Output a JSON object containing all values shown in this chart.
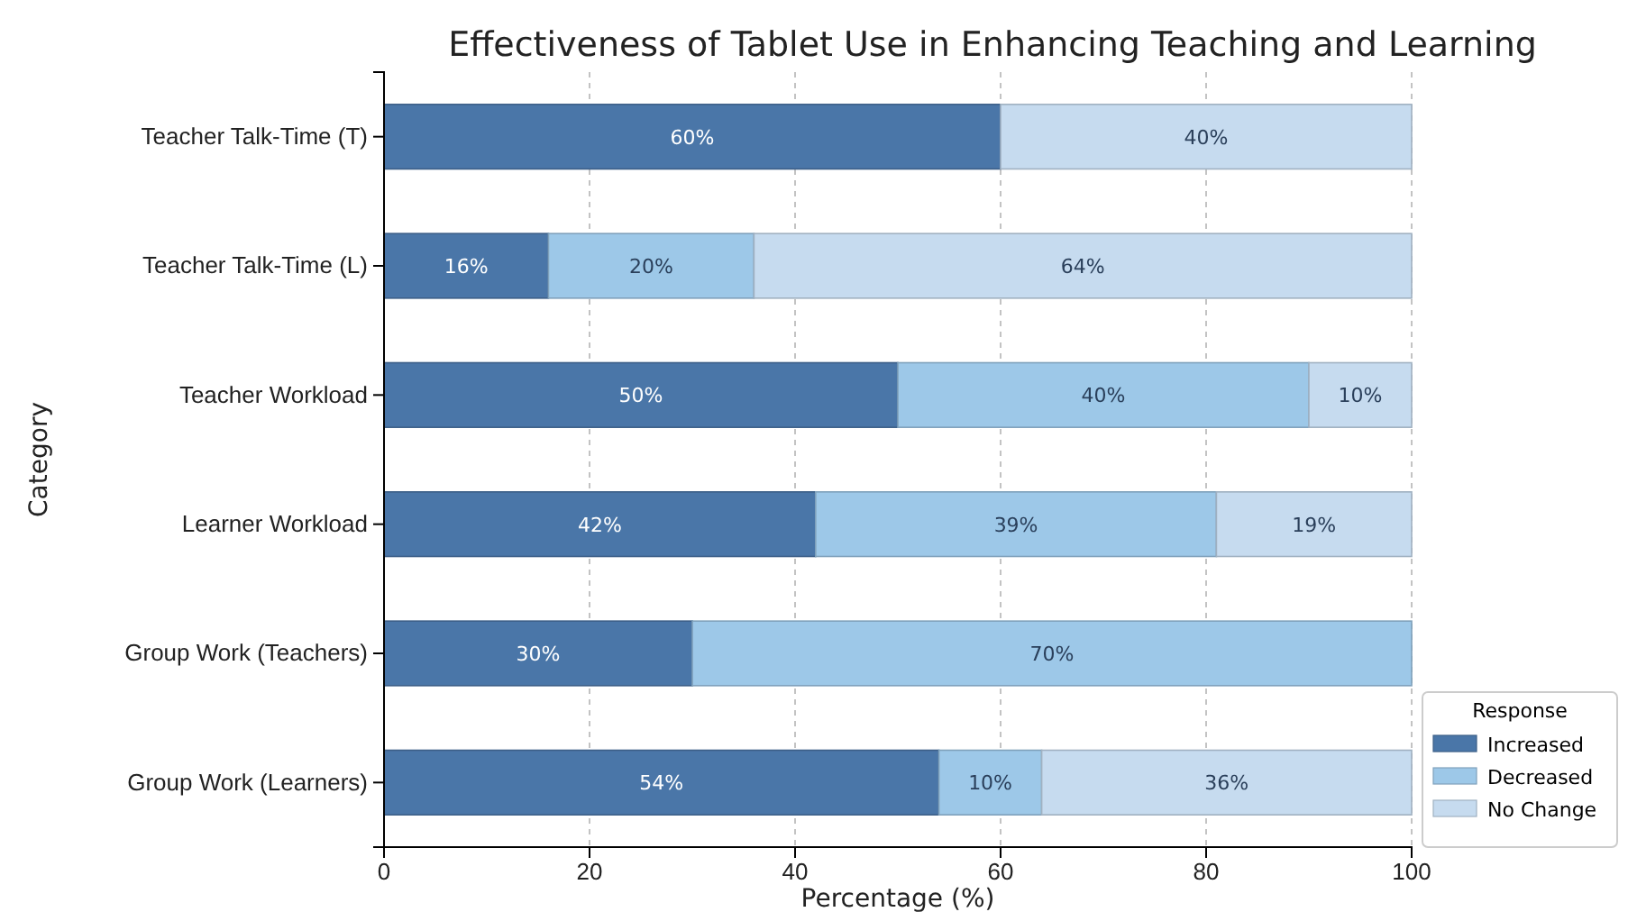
{
  "chart_data": {
    "type": "bar",
    "title": "Effectiveness of Tablet Use in Enhancing Teaching and Learning",
    "xlabel": "Percentage (%)",
    "ylabel": "Category",
    "legend_title": "Response",
    "orientation": "horizontal",
    "stacked": true,
    "grid": true,
    "legend": "bottom right",
    "categories": [
      "Teacher Talk-Time (T)",
      "Teacher Talk-Time (L)",
      "Teacher Workload",
      "Learner Workload",
      "Group Work (Teachers)",
      "Group Work (Learners)"
    ],
    "xlim": [
      0,
      100
    ],
    "xticks": [
      0,
      20,
      40,
      60,
      80,
      100
    ],
    "series": [
      {
        "name": "Increased",
        "color": "#4a76a8",
        "values": [
          60,
          16,
          50,
          42,
          30,
          54
        ],
        "value_labels": [
          "60%",
          "16%",
          "50%",
          "42%",
          "30%",
          "54%"
        ]
      },
      {
        "name": "Decreased",
        "color": "#9dc8e8",
        "values": [
          0,
          20,
          40,
          39,
          70,
          10
        ],
        "value_labels": [
          null,
          "20%",
          "40%",
          "39%",
          "70%",
          "10%"
        ]
      },
      {
        "name": "No Change",
        "color": "#c6dbef",
        "values": [
          40,
          64,
          10,
          19,
          0,
          36
        ],
        "value_labels": [
          "40%",
          "64%",
          "10%",
          "19%",
          null,
          "36%"
        ]
      }
    ]
  }
}
